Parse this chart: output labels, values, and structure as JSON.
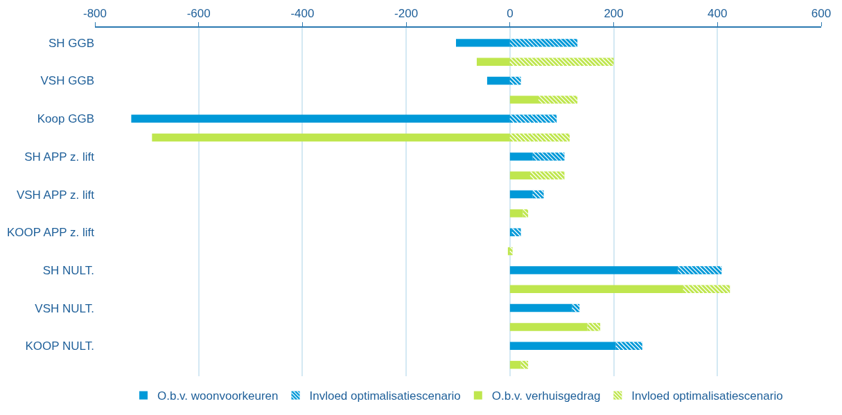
{
  "chart_data": {
    "type": "bar",
    "orientation": "horizontal",
    "stacked": true,
    "categories": [
      "SH GGB",
      null,
      "VSH GGB",
      null,
      "Koop GGB",
      null,
      "SH APP z. lift",
      null,
      "VSH APP z. lift",
      null,
      "KOOP APP z. lift",
      null,
      "SH NULT.",
      null,
      "VSH NULT.",
      null,
      "KOOP NULT.",
      null
    ],
    "series": [
      {
        "name": "O.b.v. woonvoorkeuren",
        "color": "#0099d8",
        "values": [
          -104,
          null,
          -44,
          null,
          -730,
          null,
          44,
          null,
          44,
          null,
          4,
          null,
          324,
          null,
          120,
          null,
          204,
          null
        ]
      },
      {
        "name": "Invloed optimalisatiescenario",
        "color": "#0099d8",
        "values": [
          130,
          null,
          21,
          null,
          90,
          null,
          61,
          null,
          21,
          null,
          17,
          null,
          84,
          null,
          14,
          null,
          51,
          null
        ]
      },
      {
        "name": "O.b.v. verhuisgedrag",
        "color": "#bfe64e",
        "values": [
          null,
          -64,
          null,
          55,
          null,
          -690,
          null,
          39,
          null,
          25,
          null,
          -4,
          null,
          334,
          null,
          149,
          null,
          21
        ]
      },
      {
        "name": "Invloed optimalisatiescenario",
        "color": "#bfe64e",
        "values": [
          null,
          200,
          null,
          75,
          null,
          115,
          null,
          66,
          null,
          10,
          null,
          5,
          null,
          90,
          null,
          25,
          null,
          14
        ]
      }
    ],
    "xlim": [
      -800,
      600
    ],
    "xticks": [
      -800,
      -600,
      -400,
      -200,
      0,
      200,
      400,
      600
    ],
    "grid": "x",
    "legend": "bottom"
  }
}
